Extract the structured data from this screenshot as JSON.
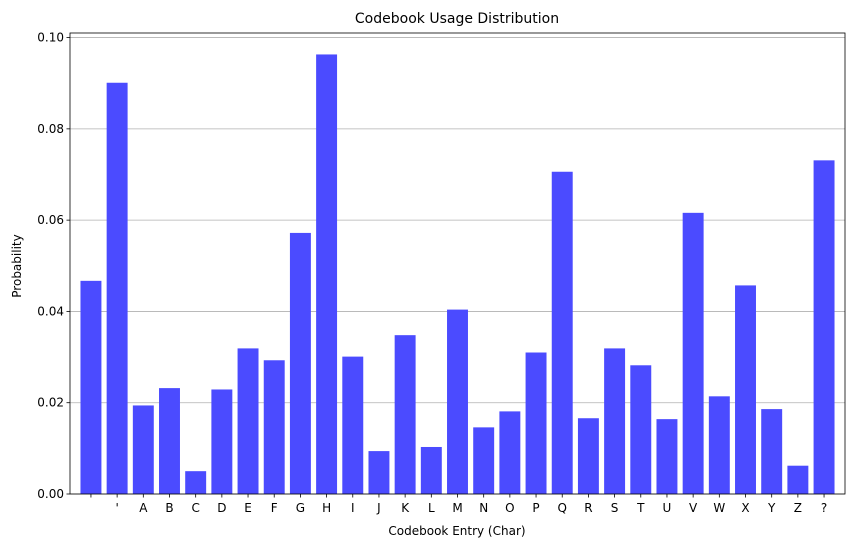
{
  "chart_data": {
    "type": "bar",
    "title": "Codebook Usage Distribution",
    "xlabel": "Codebook Entry (Char)",
    "ylabel": "Probability",
    "categories": [
      " ",
      "'",
      "A",
      "B",
      "C",
      "D",
      "E",
      "F",
      "G",
      "H",
      "I",
      "J",
      "K",
      "L",
      "M",
      "N",
      "O",
      "P",
      "Q",
      "R",
      "S",
      "T",
      "U",
      "V",
      "W",
      "X",
      "Y",
      "Z",
      "?"
    ],
    "values": [
      0.0467,
      0.0901,
      0.0194,
      0.0232,
      0.005,
      0.0229,
      0.0319,
      0.0293,
      0.0572,
      0.0963,
      0.0301,
      0.0094,
      0.0348,
      0.0103,
      0.0404,
      0.0146,
      0.0181,
      0.031,
      0.0706,
      0.0166,
      0.0319,
      0.0282,
      0.0164,
      0.0616,
      0.0214,
      0.0457,
      0.0186,
      0.0062,
      0.0731
    ],
    "ylim": [
      0,
      0.101
    ],
    "yticks": [
      "0.00",
      "0.02",
      "0.04",
      "0.06",
      "0.08",
      "0.10"
    ],
    "grid": "y",
    "bar_color": "#4b4bff"
  }
}
